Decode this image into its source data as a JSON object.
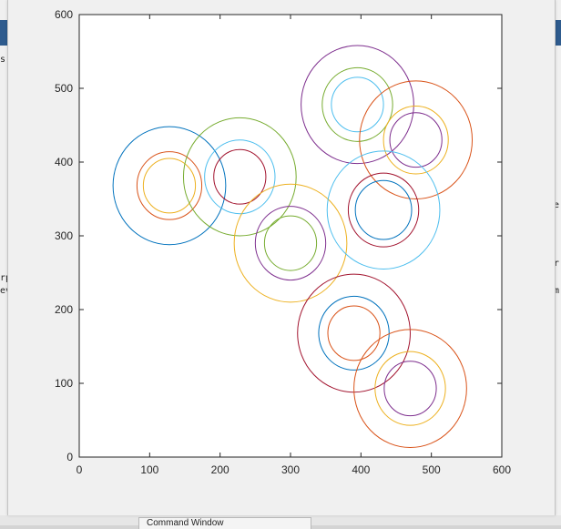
{
  "background": {
    "left_snippets": [
      "s",
      "rp",
      "ev"
    ],
    "right_snippets": [
      "e",
      "r",
      "m"
    ],
    "command_window_tab": "Command Window"
  },
  "chart_data": {
    "type": "scatter",
    "marker": "circle-outline",
    "title": "",
    "xlabel": "",
    "ylabel": "",
    "xlim": [
      0,
      600
    ],
    "ylim": [
      0,
      600
    ],
    "xticks": [
      "0",
      "100",
      "200",
      "300",
      "400",
      "500",
      "600"
    ],
    "yticks": [
      "0",
      "100",
      "200",
      "300",
      "400",
      "500",
      "600"
    ],
    "grid": false,
    "colors": {
      "blue": "#0072BD",
      "orange": "#D95319",
      "yellow": "#EDB120",
      "purple": "#7E2F8E",
      "green": "#77AC30",
      "cyan": "#4DBEEE",
      "dark_red": "#A2142F"
    },
    "circles": [
      {
        "x": 128,
        "y": 368,
        "r": 80,
        "color": "blue"
      },
      {
        "x": 128,
        "y": 368,
        "r": 46,
        "color": "orange"
      },
      {
        "x": 128,
        "y": 368,
        "r": 37,
        "color": "yellow"
      },
      {
        "x": 228,
        "y": 380,
        "r": 80,
        "color": "green"
      },
      {
        "x": 228,
        "y": 380,
        "r": 50,
        "color": "cyan"
      },
      {
        "x": 228,
        "y": 380,
        "r": 37,
        "color": "dark_red"
      },
      {
        "x": 300,
        "y": 290,
        "r": 80,
        "color": "yellow"
      },
      {
        "x": 300,
        "y": 290,
        "r": 50,
        "color": "purple"
      },
      {
        "x": 300,
        "y": 290,
        "r": 37,
        "color": "green"
      },
      {
        "x": 395,
        "y": 478,
        "r": 80,
        "color": "purple"
      },
      {
        "x": 395,
        "y": 478,
        "r": 50,
        "color": "green"
      },
      {
        "x": 395,
        "y": 478,
        "r": 37,
        "color": "cyan"
      },
      {
        "x": 478,
        "y": 430,
        "r": 80,
        "color": "orange"
      },
      {
        "x": 478,
        "y": 430,
        "r": 46,
        "color": "yellow"
      },
      {
        "x": 478,
        "y": 430,
        "r": 37,
        "color": "purple"
      },
      {
        "x": 432,
        "y": 335,
        "r": 80,
        "color": "cyan"
      },
      {
        "x": 432,
        "y": 335,
        "r": 50,
        "color": "dark_red"
      },
      {
        "x": 432,
        "y": 335,
        "r": 40,
        "color": "blue"
      },
      {
        "x": 390,
        "y": 168,
        "r": 80,
        "color": "dark_red"
      },
      {
        "x": 390,
        "y": 168,
        "r": 50,
        "color": "blue"
      },
      {
        "x": 390,
        "y": 168,
        "r": 37,
        "color": "orange"
      },
      {
        "x": 470,
        "y": 93,
        "r": 80,
        "color": "orange"
      },
      {
        "x": 470,
        "y": 93,
        "r": 50,
        "color": "yellow"
      },
      {
        "x": 470,
        "y": 93,
        "r": 37,
        "color": "purple"
      }
    ]
  }
}
